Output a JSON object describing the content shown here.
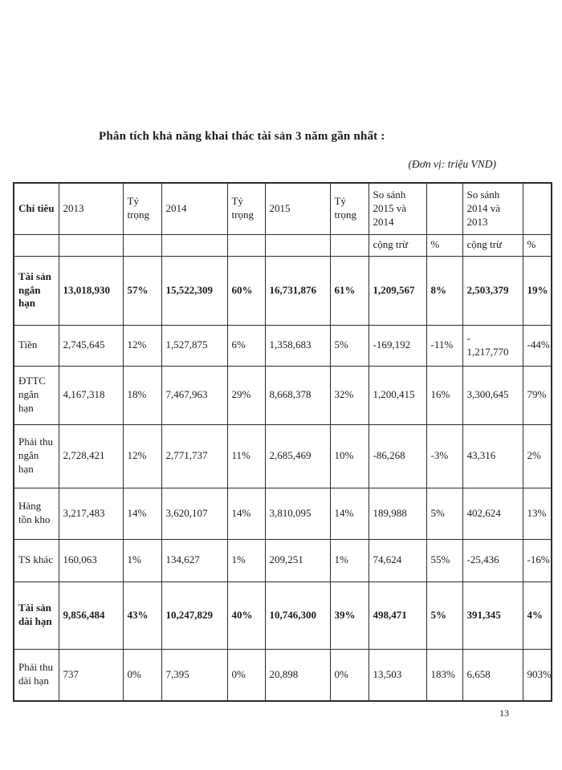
{
  "page": {
    "title": "Phân tích khả năng khai thác tài sản 3 năm gần nhất :",
    "unit_note": "(Đơn vị: triệu VND)",
    "page_number": "13"
  },
  "colors": {
    "text": "#1b1b1b",
    "border": "#2b2b2b",
    "background": "#ffffff"
  },
  "table": {
    "header_row1": [
      "Chỉ tiêu",
      "2013",
      "Tỷ trọng",
      "2014",
      "Tỷ trọng",
      "2015",
      "Tỷ trọng",
      "So sánh 2015 và 2014",
      "",
      "So sánh 2014 và 2013",
      ""
    ],
    "header_row2": [
      "",
      "",
      "",
      "",
      "",
      "",
      "",
      "cộng trừ",
      "%",
      "cộng trừ",
      "%"
    ],
    "rows": [
      {
        "label": "Tài sản ngắn hạn",
        "bold": true,
        "cells": [
          "13,018,930",
          "57%",
          "15,522,309",
          "60%",
          "16,731,876",
          "61%",
          "1,209,567",
          "8%",
          "2,503,379",
          "19%"
        ]
      },
      {
        "label": "Tiền",
        "bold": false,
        "cells": [
          "2,745,645",
          "12%",
          "1,527,875",
          "6%",
          "1,358,683",
          "5%",
          "-169,192",
          "-11%",
          "-\n1,217,770",
          "-44%"
        ]
      },
      {
        "label": "ĐTTC ngắn hạn",
        "bold": false,
        "cells": [
          "4,167,318",
          "18%",
          "7,467,963",
          "29%",
          "8,668,378",
          "32%",
          "1,200,415",
          "16%",
          "3,300,645",
          "79%"
        ]
      },
      {
        "label": "Phải thu ngắn hạn",
        "bold": false,
        "cells": [
          "2,728,421",
          "12%",
          "2,771,737",
          "11%",
          "2,685,469",
          "10%",
          "-86,268",
          "-3%",
          "43,316",
          "2%"
        ]
      },
      {
        "label": "Hàng tồn kho",
        "bold": false,
        "cells": [
          "3,217,483",
          "14%",
          "3,620,107",
          "14%",
          "3,810,095",
          "14%",
          "189,988",
          "5%",
          "402,624",
          "13%"
        ]
      },
      {
        "label": "TS khác",
        "bold": false,
        "cells": [
          "160,063",
          "1%",
          "134,627",
          "1%",
          "209,251",
          "1%",
          "74,624",
          "55%",
          "-25,436",
          "-16%"
        ]
      },
      {
        "label": "Tài sản dài hạn",
        "bold": true,
        "cells": [
          "9,856,484",
          "43%",
          "10,247,829",
          "40%",
          "10,746,300",
          "39%",
          "498,471",
          "5%",
          "391,345",
          "4%"
        ]
      },
      {
        "label": "Phải thu dài hạn",
        "bold": false,
        "cells": [
          "737",
          "0%",
          "7,395",
          "0%",
          "20,898",
          "0%",
          "13,503",
          "183%",
          "6,658",
          "903%"
        ]
      }
    ]
  }
}
